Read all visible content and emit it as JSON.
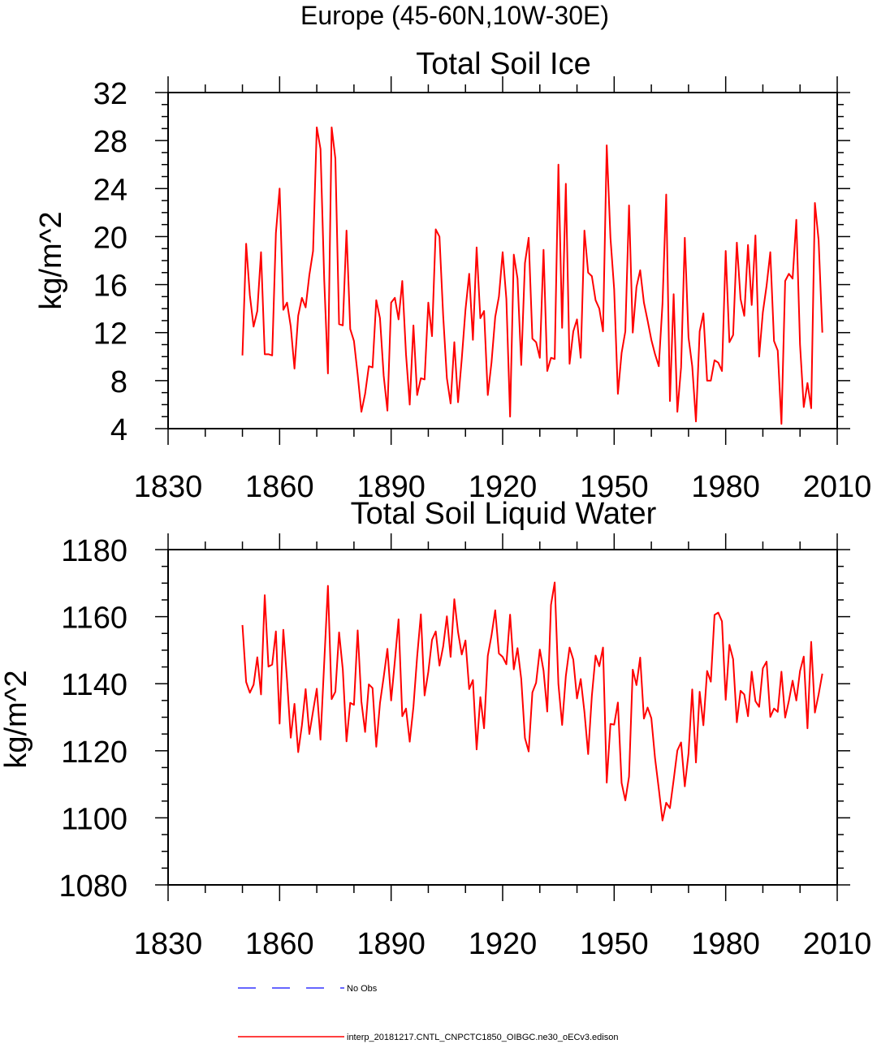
{
  "figure": {
    "title": "Europe (45-60N,10W-30E)"
  },
  "legend": {
    "entries": [
      {
        "label": "No Obs",
        "color": "#3333ff",
        "style": "dashed"
      },
      {
        "label": "interp_20181217.CNTL_CNPCTC1850_OIBGC.ne30_oECv3.edison",
        "color": "#ff0000",
        "style": "solid"
      }
    ]
  },
  "chart_data": [
    {
      "type": "line",
      "title": "Total Soil Ice",
      "xlabel": "",
      "ylabel": "kg/m^2",
      "xlim": [
        1830,
        2010
      ],
      "ylim": [
        4,
        32
      ],
      "xticks": [
        1830,
        1860,
        1890,
        1920,
        1950,
        1980,
        2010
      ],
      "yticks": [
        4,
        8,
        12,
        16,
        20,
        24,
        28,
        32
      ],
      "x_start": 1850,
      "x_step": 1,
      "series": [
        {
          "name": "interp_20181217.CNTL_CNPCTC1850_OIBGC.ne30_oECv3.edison",
          "color": "#ff0000",
          "values": [
            10.1,
            19.4,
            15.1,
            12.5,
            13.8,
            18.7,
            10.2,
            10.2,
            10.1,
            20.3,
            24.0,
            13.9,
            14.5,
            12.5,
            9.0,
            13.4,
            14.9,
            14.1,
            16.8,
            18.8,
            29.1,
            27.3,
            16.4,
            8.6,
            29.1,
            26.5,
            12.7,
            12.6,
            20.5,
            12.3,
            11.3,
            8.5,
            5.4,
            6.9,
            9.2,
            9.1,
            14.7,
            13.2,
            8.4,
            5.5,
            14.5,
            14.9,
            13.1,
            16.3,
            10.2,
            6.0,
            12.6,
            6.8,
            8.2,
            8.1,
            14.5,
            11.7,
            20.6,
            20.0,
            13.4,
            8.2,
            6.1,
            11.2,
            6.2,
            9.8,
            13.9,
            16.9,
            11.4,
            19.1,
            13.2,
            13.8,
            6.8,
            9.5,
            13.3,
            15.0,
            18.7,
            14.8,
            5.0,
            18.5,
            16.5,
            9.3,
            17.8,
            19.9,
            11.5,
            11.2,
            9.9,
            18.9,
            8.8,
            9.9,
            9.8,
            26.0,
            12.4,
            24.4,
            9.4,
            12.1,
            13.1,
            9.9,
            20.5,
            17.0,
            16.7,
            14.7,
            14.0,
            12.1,
            27.6,
            19.9,
            15.6,
            6.9,
            10.3,
            12.1,
            22.6,
            12.0,
            15.8,
            17.2,
            14.5,
            13.0,
            11.4,
            10.2,
            9.2,
            14.4,
            23.5,
            6.3,
            15.2,
            5.4,
            9.1,
            19.9,
            11.6,
            9.2,
            4.6,
            12.1,
            13.6,
            8.0,
            8.0,
            9.7,
            9.5,
            8.8,
            18.8,
            11.2,
            11.8,
            19.5,
            14.8,
            13.4,
            19.3,
            14.3,
            20.1,
            10.0,
            13.7,
            15.9,
            18.7,
            11.3,
            10.5,
            4.4,
            16.3,
            16.9,
            16.5,
            21.4,
            11.0,
            5.8,
            7.8,
            5.7,
            22.8,
            19.7,
            12.0
          ]
        }
      ]
    },
    {
      "type": "line",
      "title": "Total Soil Liquid Water",
      "xlabel": "",
      "ylabel": "kg/m^2",
      "xlim": [
        1830,
        2010
      ],
      "ylim": [
        1080,
        1180
      ],
      "xticks": [
        1830,
        1860,
        1890,
        1920,
        1950,
        1980,
        2010
      ],
      "yticks": [
        1080,
        1100,
        1120,
        1140,
        1160,
        1180
      ],
      "x_start": 1850,
      "x_step": 1,
      "series": [
        {
          "name": "interp_20181217.CNTL_CNPCTC1850_OIBGC.ne30_oECv3.edison",
          "color": "#ff0000",
          "values": [
            1157.5,
            1140.5,
            1137.3,
            1139.7,
            1147.9,
            1136.8,
            1166.4,
            1145.1,
            1145.7,
            1155.6,
            1128.1,
            1156.1,
            1141.1,
            1123.9,
            1134.0,
            1119.6,
            1127.6,
            1138.4,
            1125.0,
            1131.8,
            1138.5,
            1123.3,
            1146.3,
            1169.2,
            1135.4,
            1137.6,
            1155.3,
            1144.2,
            1122.8,
            1134.3,
            1133.7,
            1155.9,
            1134.7,
            1125.6,
            1139.8,
            1138.7,
            1121.2,
            1134.2,
            1142.0,
            1150.4,
            1135.0,
            1146.7,
            1159.2,
            1130.3,
            1132.6,
            1122.7,
            1133.1,
            1148.1,
            1160.7,
            1136.5,
            1143.5,
            1153.1,
            1155.6,
            1145.4,
            1151.1,
            1160.1,
            1148.0,
            1165.2,
            1155.4,
            1148.7,
            1152.9,
            1138.4,
            1141.1,
            1120.4,
            1136.0,
            1126.7,
            1148.3,
            1154.4,
            1161.9,
            1149.0,
            1148.0,
            1145.8,
            1160.6,
            1144.3,
            1150.6,
            1141.4,
            1123.8,
            1119.8,
            1137.4,
            1140.3,
            1150.2,
            1143.9,
            1131.7,
            1163.5,
            1170.2,
            1139.9,
            1127.7,
            1142.3,
            1150.8,
            1147.2,
            1135.6,
            1141.4,
            1131.6,
            1119.0,
            1136.4,
            1148.4,
            1145.2,
            1150.8,
            1110.5,
            1128.0,
            1127.8,
            1134.4,
            1110.4,
            1105.2,
            1112.3,
            1144.2,
            1139.6,
            1147.8,
            1129.6,
            1132.9,
            1129.7,
            1117.7,
            1108.7,
            1099.2,
            1104.5,
            1102.9,
            1111.3,
            1120.1,
            1122.5,
            1109.4,
            1119.2,
            1138.3,
            1116.5,
            1137.6,
            1127.6,
            1143.8,
            1140.6,
            1160.5,
            1161.2,
            1158.6,
            1135.2,
            1151.6,
            1147.3,
            1128.5,
            1137.9,
            1136.8,
            1130.3,
            1143.6,
            1134.8,
            1133.1,
            1144.6,
            1146.6,
            1130.1,
            1132.6,
            1131.6,
            1143.6,
            1129.9,
            1134.9,
            1140.9,
            1135.0,
            1143.8,
            1148.1,
            1126.7,
            1152.5,
            1131.4,
            1136.8,
            1143.0
          ]
        }
      ]
    }
  ]
}
